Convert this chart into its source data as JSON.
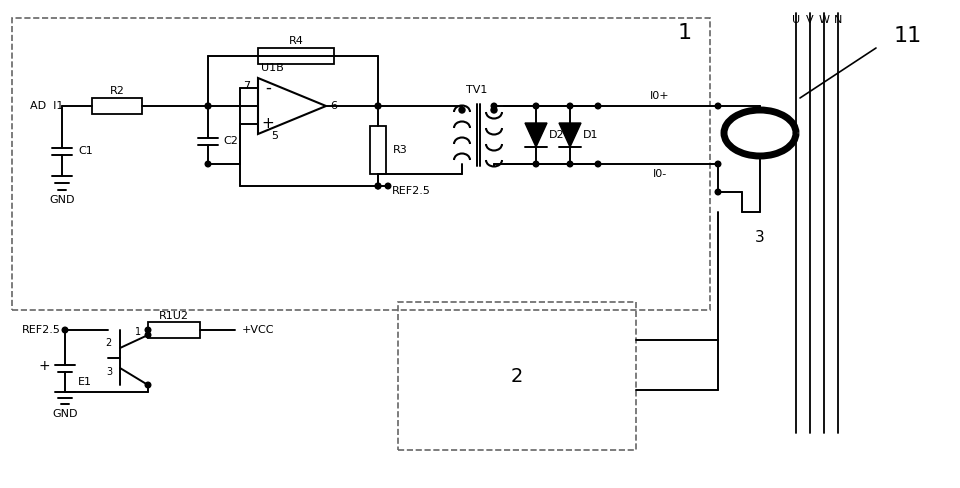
{
  "bg": "#ffffff",
  "lc": "#111111",
  "dash_c": "#666666",
  "fig_w": 9.6,
  "fig_h": 4.88,
  "dpi": 100,
  "labels": {
    "ad_i1": "AD  I1",
    "r2": "R2",
    "c1": "C1",
    "gnd": "GND",
    "r4": "R4",
    "c2": "C2",
    "u1b": "U1B",
    "r3": "R3",
    "ref25": "REF2.5",
    "tv1": "TV1",
    "d2": "D2",
    "d1": "D1",
    "io_plus": "I0+",
    "io_minus": "I0-",
    "uvwn": [
      "U",
      "V",
      "W",
      "N"
    ],
    "box1": "1",
    "box2": "2",
    "num11": "11",
    "num3": "3",
    "ref25b": "REF2.5",
    "e1": "E1",
    "r1u2": "R1U2",
    "vcc": "+VCC"
  }
}
